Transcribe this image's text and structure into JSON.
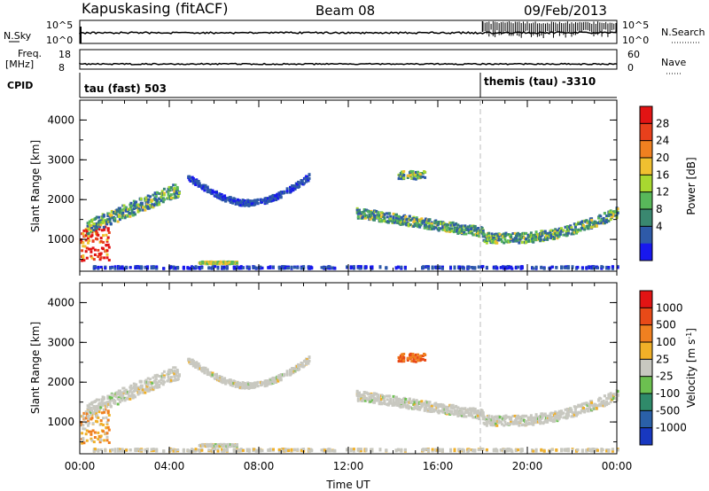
{
  "header": {
    "station": "Kapuskasing (fitACF)",
    "beam": "Beam 08",
    "date": "09/Feb/2013"
  },
  "top_panels": {
    "nsky_label": "N.Sky",
    "nsky_ticks": [
      "10^5",
      "10^0"
    ],
    "nsearch_label": "N.Search",
    "nsearch_ticks": [
      "10^5",
      "10^0"
    ],
    "freq_label": "Freq.",
    "freq_unit": "[MHz]",
    "freq_ticks": [
      "18",
      "8"
    ],
    "nave_label": "Nave",
    "nave_ticks": [
      "60",
      "0"
    ],
    "cpid_label": "CPID",
    "cpid_segments": [
      {
        "label": "tau (fast) 503",
        "start_hour": 0
      },
      {
        "label": "themis (tau) -3310",
        "start_hour": 18
      }
    ]
  },
  "chart_data": [
    {
      "type": "heatmap",
      "name": "power-panel",
      "ylabel": "Slant Range [km]",
      "xlim": [
        0,
        24
      ],
      "ylim": [
        200,
        4500
      ],
      "yticks": [
        "1000",
        "2000",
        "3000",
        "4000"
      ],
      "colorbar_label": "Power [dB]",
      "colorbar_ticks": [
        "4",
        "8",
        "12",
        "16",
        "20",
        "24",
        "28"
      ],
      "colors": [
        "#1818ee",
        "#2e5aa8",
        "#3a8870",
        "#58b85a",
        "#a8d830",
        "#f0c030",
        "#f08020",
        "#e8401c",
        "#e21414"
      ]
    },
    {
      "type": "heatmap",
      "name": "velocity-panel",
      "ylabel": "Slant Range [km]",
      "xlabel": "Time UT",
      "xlim": [
        0,
        24
      ],
      "ylim": [
        200,
        4500
      ],
      "yticks": [
        "1000",
        "2000",
        "3000",
        "4000"
      ],
      "xticks": [
        "00:00",
        "04:00",
        "08:00",
        "12:00",
        "16:00",
        "20:00",
        "00:00"
      ],
      "colorbar_label": "Velocity [m s^-1]",
      "colorbar_ticks": [
        "1000",
        "500",
        "100",
        "25",
        "-25",
        "-100",
        "-500",
        "-1000"
      ],
      "colors": [
        "#1838c0",
        "#2a60a8",
        "#2f8a6a",
        "#6cc050",
        "#c8c8c0",
        "#f0b028",
        "#f08020",
        "#e84a18",
        "#e21414"
      ]
    }
  ]
}
